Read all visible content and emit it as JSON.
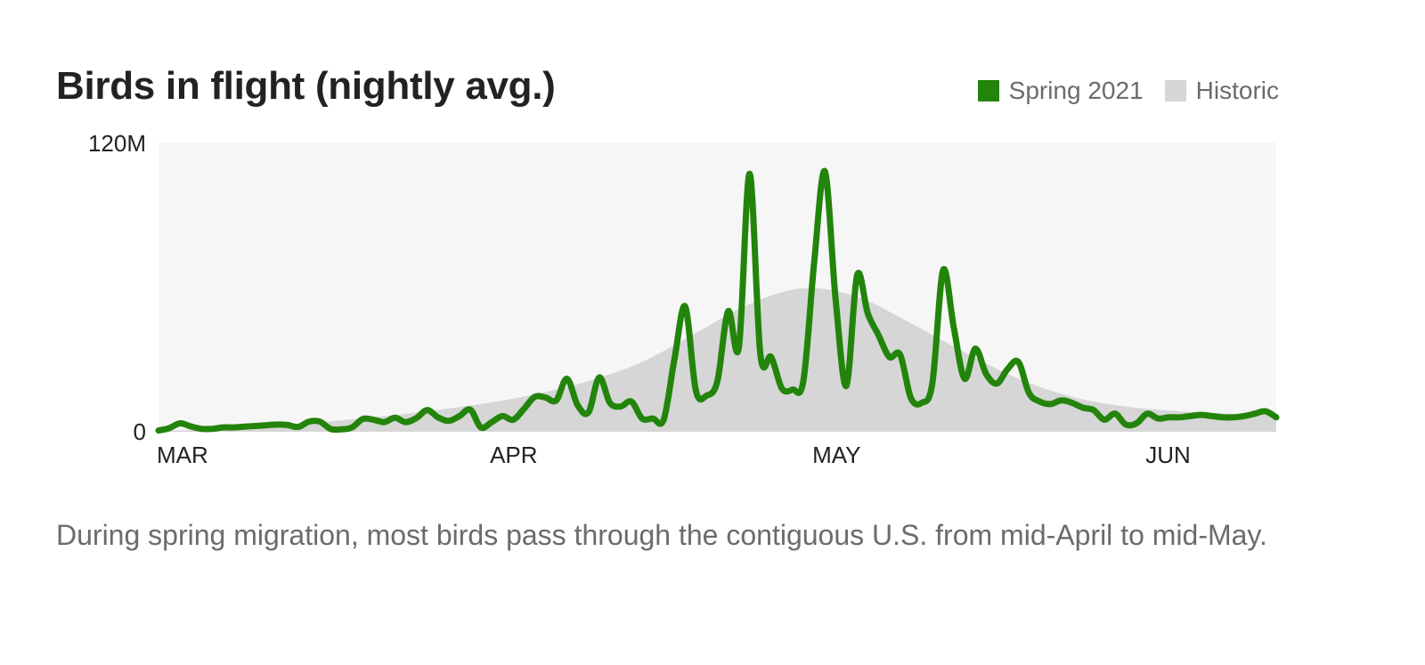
{
  "header": {
    "title": "Birds in flight (nightly avg.)"
  },
  "legend": [
    {
      "label": "Spring 2021",
      "color": "#23840b"
    },
    {
      "label": "Historic",
      "color": "#d6d6d6"
    }
  ],
  "caption": "During spring migration, most birds pass through the contiguous U.S. from mid-April to mid-May.",
  "colors": {
    "plot_background": "#f6f6f6",
    "historic_fill": "#d6d6d6",
    "spring_line": "#23840b",
    "axis_text": "#222222",
    "caption_text": "#6b6b6b"
  },
  "chart_data": {
    "type": "line",
    "title": "Birds in flight (nightly avg.)",
    "subtitle": "",
    "xlabel": "",
    "ylabel": "",
    "ylim": [
      0,
      120
    ],
    "yunit": "M",
    "yticks": [
      {
        "value": 0,
        "label": "0"
      },
      {
        "value": 120,
        "label": "120M"
      }
    ],
    "xticks": [
      {
        "day": 0,
        "label": "MAR"
      },
      {
        "day": 31,
        "label": "APR"
      },
      {
        "day": 61,
        "label": "MAY"
      },
      {
        "day": 92,
        "label": "JUN"
      }
    ],
    "x_range_days": [
      0,
      104
    ],
    "x_start": "Mar 1",
    "grid": false,
    "legend_position": "top-right",
    "annotations": [],
    "series": [
      {
        "name": "Spring 2021",
        "type": "line",
        "color": "#23840b",
        "x": [
          0,
          1,
          2,
          3,
          4,
          5,
          6,
          7,
          8,
          9,
          10,
          11,
          12,
          13,
          14,
          15,
          16,
          17,
          18,
          19,
          20,
          21,
          22,
          23,
          24,
          25,
          26,
          27,
          28,
          29,
          30,
          31,
          32,
          33,
          34,
          35,
          36,
          37,
          38,
          39,
          40,
          41,
          42,
          43,
          44,
          45,
          46,
          47,
          48,
          49,
          50,
          51,
          52,
          53,
          54,
          55,
          56,
          57,
          58,
          59,
          60,
          61,
          62,
          63,
          64,
          65,
          66,
          67,
          68,
          69,
          70,
          71,
          72,
          73,
          74,
          75,
          76,
          77,
          78,
          79,
          80,
          81,
          82,
          83,
          84,
          85,
          86,
          87,
          88,
          89,
          90,
          91,
          92,
          93,
          94,
          95,
          96,
          97,
          98,
          99,
          100,
          101,
          102,
          103,
          104
        ],
        "values": [
          0.5,
          1.5,
          3.5,
          2.2,
          1.2,
          1.2,
          1.8,
          1.8,
          2.1,
          2.4,
          2.7,
          3.0,
          2.8,
          2.0,
          4.2,
          4.2,
          1.2,
          1.0,
          1.8,
          5.3,
          5.0,
          4.0,
          5.8,
          4.0,
          5.7,
          9.0,
          6.0,
          4.5,
          6.5,
          9.2,
          1.8,
          4.0,
          6.5,
          5.0,
          9.5,
          14.5,
          14.2,
          13.0,
          22.0,
          11.0,
          8.0,
          22.5,
          12.0,
          10.5,
          12.5,
          5.5,
          5.5,
          5.0,
          30.0,
          52.0,
          17.0,
          15.0,
          21.0,
          50.0,
          35.0,
          107.0,
          32.0,
          31.0,
          18.0,
          17.5,
          21.0,
          70.0,
          108.0,
          55.0,
          19.0,
          65.0,
          49.0,
          40.0,
          31.0,
          32.0,
          14.0,
          12.0,
          20.0,
          67.0,
          43.0,
          22.0,
          34.5,
          24.0,
          20.0,
          26.0,
          29.0,
          16.0,
          12.5,
          11.5,
          13.0,
          12.0,
          10.0,
          9.0,
          5.0,
          7.5,
          3.0,
          3.5,
          7.5,
          5.5,
          6.0,
          6.0,
          6.5,
          7.0,
          6.5,
          6.0,
          6.0,
          6.5,
          7.5,
          8.5,
          6.0
        ]
      },
      {
        "name": "Historic",
        "type": "area",
        "color": "#d6d6d6",
        "x": [
          0,
          5,
          10,
          15,
          20,
          25,
          30,
          35,
          40,
          45,
          50,
          55,
          60,
          65,
          70,
          75,
          80,
          85,
          90,
          95,
          100,
          104
        ],
        "values": [
          0.3,
          1.0,
          2.5,
          4.0,
          6.0,
          8.5,
          11.5,
          15.5,
          21.0,
          29.0,
          41.0,
          53.0,
          59.5,
          56.0,
          45.0,
          33.0,
          22.0,
          14.5,
          10.5,
          8.5,
          7.5,
          7.0
        ]
      }
    ]
  }
}
